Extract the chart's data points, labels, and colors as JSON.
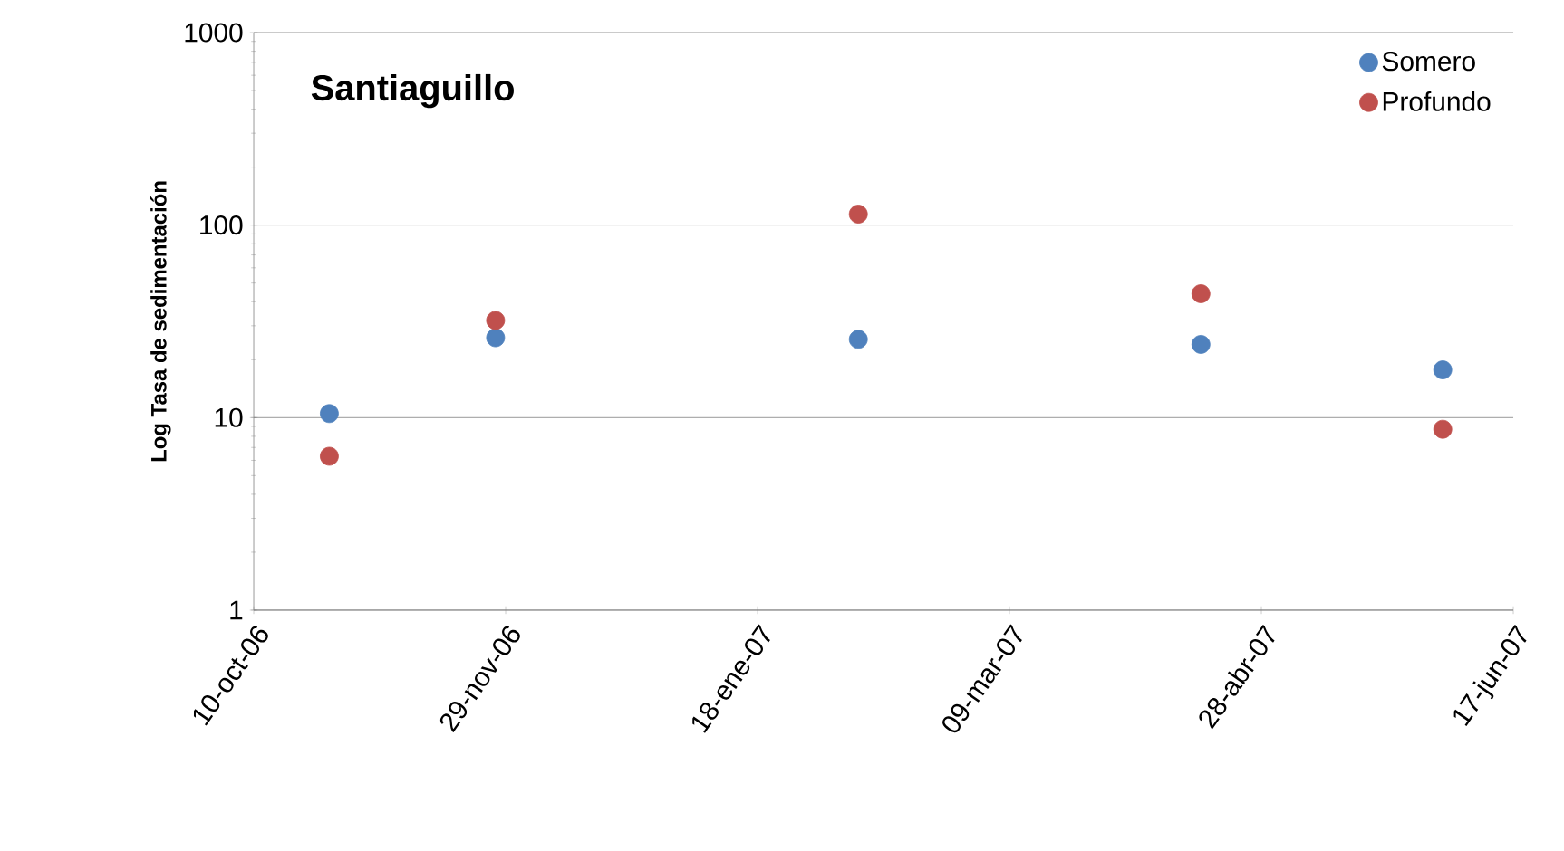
{
  "chart_data": {
    "type": "scatter",
    "title": "Santiaguillo",
    "ylabel": "Log Tasa de sedimentación",
    "x": [
      "2006-10-25",
      "2006-11-27",
      "2007-02-07",
      "2007-04-16",
      "2007-06-03"
    ],
    "series": [
      {
        "name": "Somero",
        "color": "#4f81bd",
        "values": [
          10.5,
          26,
          25.5,
          24,
          17.7
        ]
      },
      {
        "name": "Profundo",
        "color": "#c0504d",
        "values": [
          6.3,
          32,
          114,
          44,
          8.7
        ]
      }
    ],
    "log": "y",
    "ylim": [
      1,
      1000
    ],
    "yticks": [
      1,
      10,
      100,
      1000
    ],
    "xlim": [
      "2006-10-10",
      "2007-06-17"
    ],
    "xticks": [
      {
        "value": "2006-10-10",
        "label": "10-oct-06"
      },
      {
        "value": "2006-11-29",
        "label": "29-nov-06"
      },
      {
        "value": "2007-01-18",
        "label": "18-ene-07"
      },
      {
        "value": "2007-03-09",
        "label": "09-mar-07"
      },
      {
        "value": "2007-04-28",
        "label": "28-abr-07"
      },
      {
        "value": "2007-06-17",
        "label": "17-jun-07"
      }
    ],
    "grid": "y",
    "legend": "top right",
    "marker": "circle"
  }
}
